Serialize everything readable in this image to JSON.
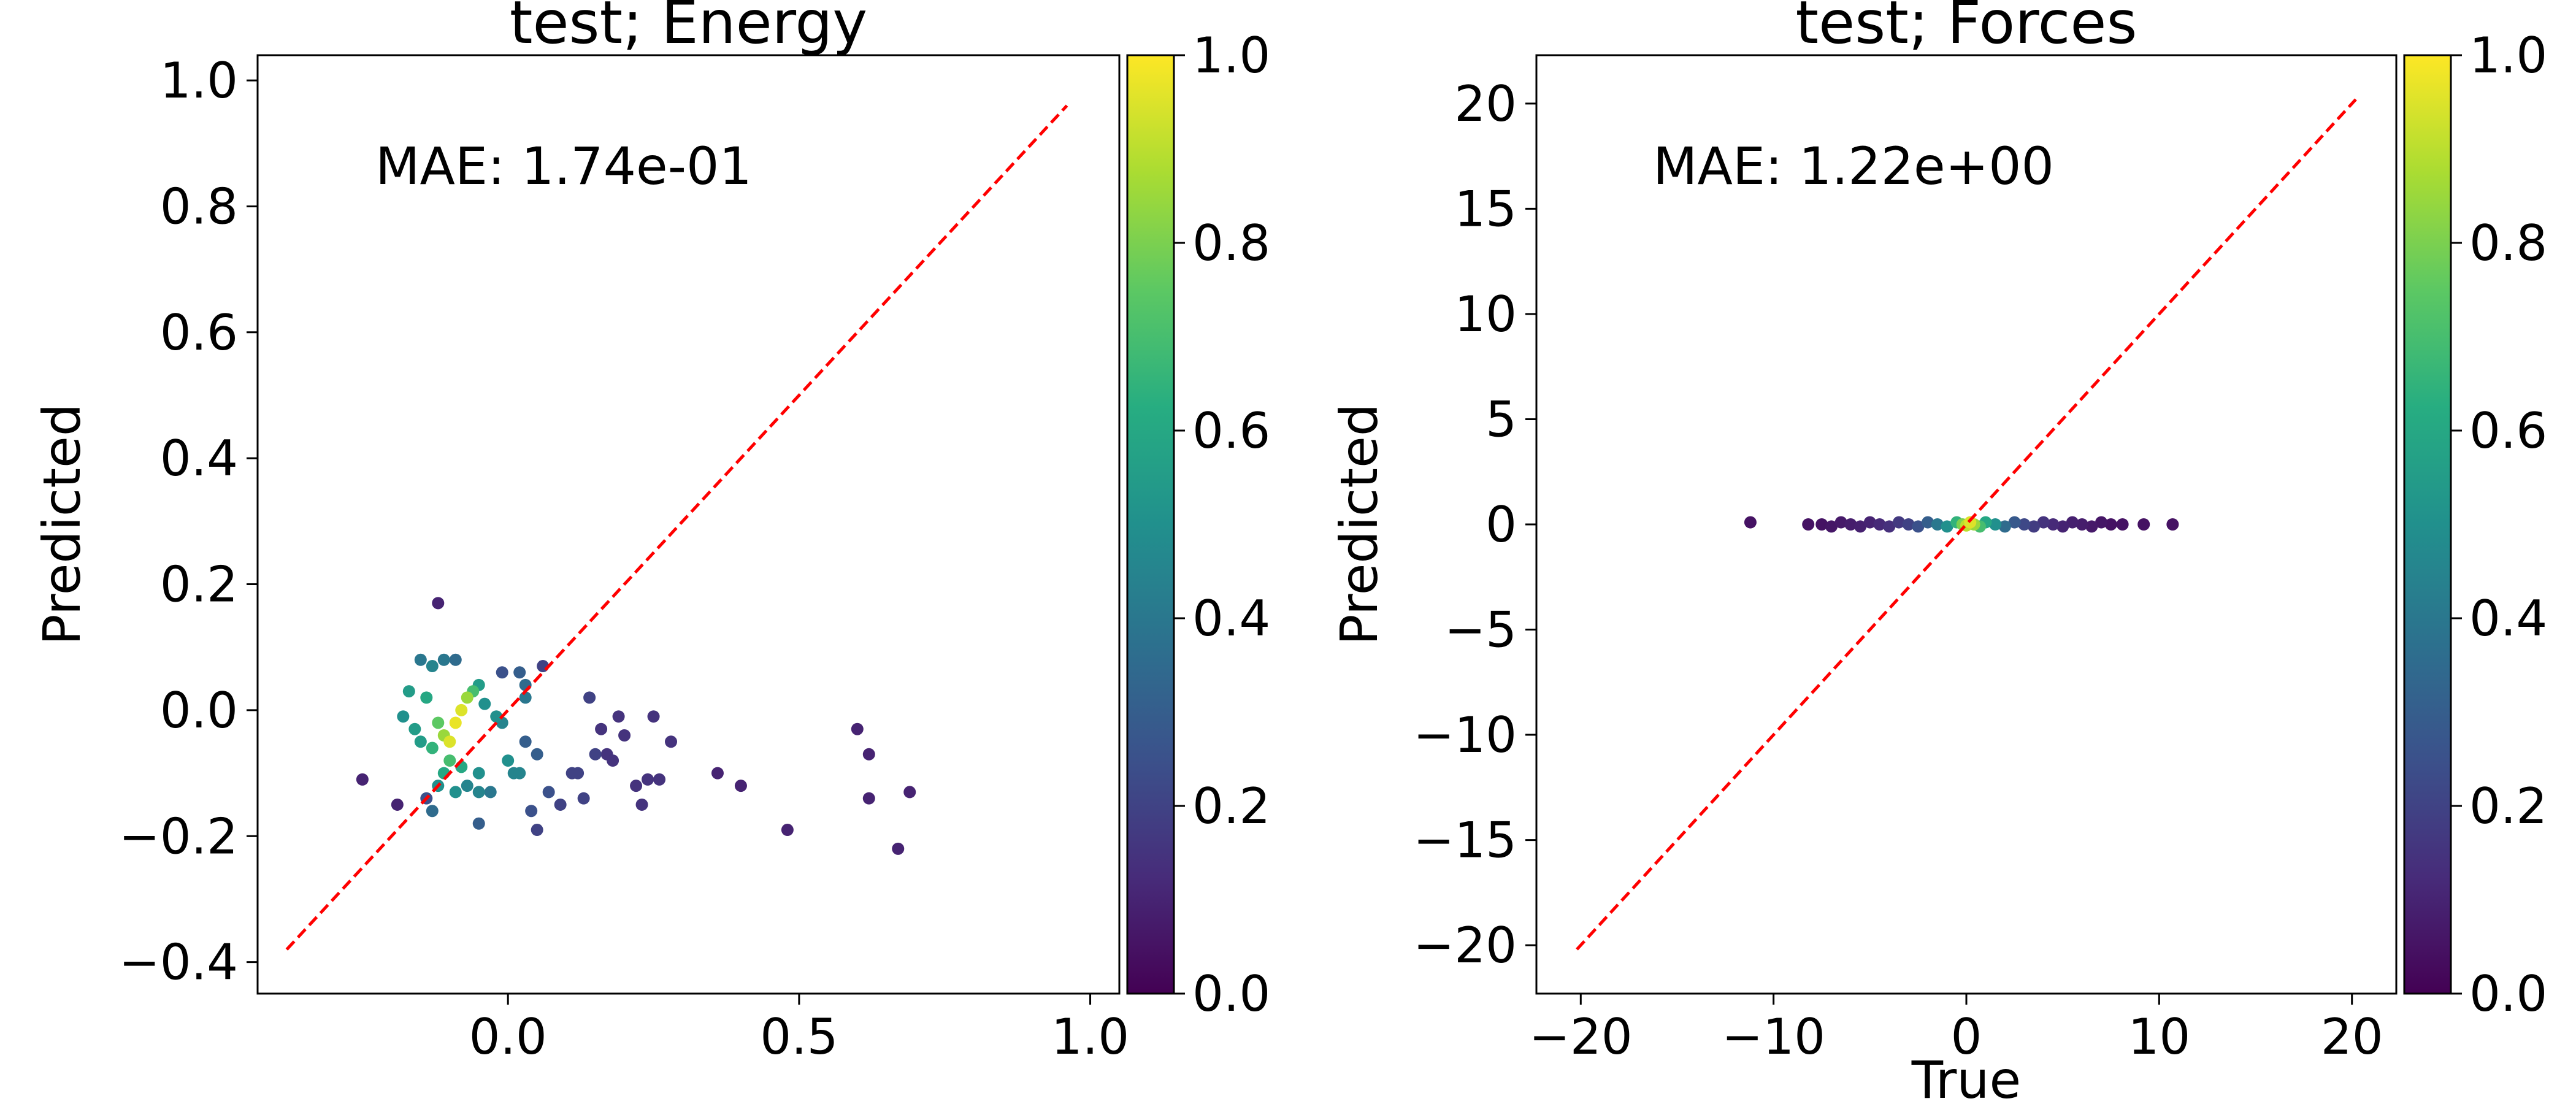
{
  "colors": {
    "identity_line": "#ff0000",
    "colormap": "viridis"
  },
  "chart_data": [
    {
      "type": "scatter",
      "title": "test; Energy",
      "xlabel": "",
      "ylabel": "Predicted",
      "xlim": [
        -0.43,
        1.05
      ],
      "ylim": [
        -0.45,
        1.04
      ],
      "xticks": [
        {
          "v": 0.0,
          "label": "0.0"
        },
        {
          "v": 0.5,
          "label": "0.5"
        },
        {
          "v": 1.0,
          "label": "1.0"
        }
      ],
      "yticks": [
        {
          "v": -0.4,
          "label": "−0.4"
        },
        {
          "v": -0.2,
          "label": "−0.2"
        },
        {
          "v": 0.0,
          "label": "0.0"
        },
        {
          "v": 0.2,
          "label": "0.2"
        },
        {
          "v": 0.4,
          "label": "0.4"
        },
        {
          "v": 0.6,
          "label": "0.6"
        },
        {
          "v": 0.8,
          "label": "0.8"
        },
        {
          "v": 1.0,
          "label": "1.0"
        }
      ],
      "annotation": "MAE: 1.74e-01",
      "identity_line": [
        [
          -0.38,
          -0.38
        ],
        [
          0.96,
          0.96
        ]
      ],
      "colorbar": {
        "range": [
          0,
          1
        ],
        "ticks": [
          {
            "v": 0.0,
            "label": "0.0"
          },
          {
            "v": 0.2,
            "label": "0.2"
          },
          {
            "v": 0.4,
            "label": "0.4"
          },
          {
            "v": 0.6,
            "label": "0.6"
          },
          {
            "v": 0.8,
            "label": "0.8"
          },
          {
            "v": 1.0,
            "label": "1.0"
          }
        ]
      },
      "grid": false,
      "points": [
        [
          -0.12,
          0.17,
          0.1
        ],
        [
          -0.25,
          -0.11,
          0.1
        ],
        [
          -0.19,
          -0.15,
          0.1
        ],
        [
          -0.14,
          -0.14,
          0.25
        ],
        [
          -0.13,
          -0.16,
          0.35
        ],
        [
          -0.15,
          0.08,
          0.4
        ],
        [
          -0.13,
          0.07,
          0.45
        ],
        [
          -0.11,
          0.08,
          0.4
        ],
        [
          -0.09,
          0.08,
          0.35
        ],
        [
          -0.18,
          -0.01,
          0.5
        ],
        [
          -0.16,
          -0.03,
          0.55
        ],
        [
          -0.17,
          0.03,
          0.55
        ],
        [
          -0.14,
          0.02,
          0.6
        ],
        [
          -0.12,
          -0.02,
          0.75
        ],
        [
          -0.11,
          -0.04,
          0.85
        ],
        [
          -0.1,
          -0.05,
          0.95
        ],
        [
          -0.09,
          -0.02,
          0.97
        ],
        [
          -0.08,
          0.0,
          0.95
        ],
        [
          -0.07,
          0.02,
          0.85
        ],
        [
          -0.06,
          0.03,
          0.7
        ],
        [
          -0.05,
          0.04,
          0.55
        ],
        [
          -0.04,
          0.01,
          0.5
        ],
        [
          -0.1,
          -0.08,
          0.7
        ],
        [
          -0.08,
          -0.09,
          0.6
        ],
        [
          -0.11,
          -0.1,
          0.6
        ],
        [
          -0.13,
          -0.06,
          0.65
        ],
        [
          -0.15,
          -0.05,
          0.55
        ],
        [
          -0.12,
          -0.12,
          0.5
        ],
        [
          -0.09,
          -0.13,
          0.5
        ],
        [
          -0.07,
          -0.12,
          0.45
        ],
        [
          -0.05,
          -0.1,
          0.5
        ],
        [
          -0.05,
          -0.13,
          0.45
        ],
        [
          -0.03,
          -0.13,
          0.4
        ],
        [
          -0.05,
          -0.18,
          0.3
        ],
        [
          -0.02,
          -0.01,
          0.5
        ],
        [
          -0.01,
          -0.02,
          0.45
        ],
        [
          0.0,
          -0.08,
          0.5
        ],
        [
          0.01,
          -0.1,
          0.45
        ],
        [
          0.02,
          -0.1,
          0.45
        ],
        [
          0.03,
          0.04,
          0.35
        ],
        [
          0.03,
          0.02,
          0.4
        ],
        [
          0.02,
          0.06,
          0.3
        ],
        [
          -0.01,
          0.06,
          0.25
        ],
        [
          0.03,
          -0.05,
          0.3
        ],
        [
          0.05,
          -0.07,
          0.3
        ],
        [
          0.06,
          0.07,
          0.2
        ],
        [
          0.04,
          -0.16,
          0.25
        ],
        [
          0.05,
          -0.19,
          0.2
        ],
        [
          0.07,
          -0.13,
          0.25
        ],
        [
          0.09,
          -0.15,
          0.2
        ],
        [
          0.11,
          -0.1,
          0.2
        ],
        [
          0.12,
          -0.1,
          0.2
        ],
        [
          0.13,
          -0.14,
          0.2
        ],
        [
          0.14,
          0.02,
          0.2
        ],
        [
          0.15,
          -0.07,
          0.2
        ],
        [
          0.16,
          -0.03,
          0.15
        ],
        [
          0.17,
          -0.07,
          0.15
        ],
        [
          0.18,
          -0.08,
          0.15
        ],
        [
          0.19,
          -0.01,
          0.15
        ],
        [
          0.2,
          -0.04,
          0.15
        ],
        [
          0.22,
          -0.12,
          0.15
        ],
        [
          0.23,
          -0.15,
          0.15
        ],
        [
          0.24,
          -0.11,
          0.15
        ],
        [
          0.25,
          -0.01,
          0.15
        ],
        [
          0.26,
          -0.11,
          0.15
        ],
        [
          0.28,
          -0.05,
          0.15
        ],
        [
          0.36,
          -0.1,
          0.1
        ],
        [
          0.4,
          -0.12,
          0.1
        ],
        [
          0.48,
          -0.19,
          0.1
        ],
        [
          0.6,
          -0.03,
          0.1
        ],
        [
          0.62,
          -0.07,
          0.1
        ],
        [
          0.62,
          -0.14,
          0.1
        ],
        [
          0.67,
          -0.22,
          0.1
        ],
        [
          0.69,
          -0.13,
          0.1
        ]
      ]
    },
    {
      "type": "scatter",
      "title": "test; Forces",
      "xlabel": "True",
      "ylabel": "Predicted",
      "xlim": [
        -22.3,
        22.3
      ],
      "ylim": [
        -22.3,
        22.3
      ],
      "xticks": [
        {
          "v": -20,
          "label": "−20"
        },
        {
          "v": -10,
          "label": "−10"
        },
        {
          "v": 0,
          "label": "0"
        },
        {
          "v": 10,
          "label": "10"
        },
        {
          "v": 20,
          "label": "20"
        }
      ],
      "yticks": [
        {
          "v": -20,
          "label": "−20"
        },
        {
          "v": -15,
          "label": "−15"
        },
        {
          "v": -10,
          "label": "−10"
        },
        {
          "v": -5,
          "label": "−5"
        },
        {
          "v": 0,
          "label": "0"
        },
        {
          "v": 5,
          "label": "5"
        },
        {
          "v": 10,
          "label": "10"
        },
        {
          "v": 15,
          "label": "15"
        },
        {
          "v": 20,
          "label": "20"
        }
      ],
      "annotation": "MAE: 1.22e+00",
      "identity_line": [
        [
          -20.2,
          -20.2
        ],
        [
          20.2,
          20.2
        ]
      ],
      "colorbar": {
        "range": [
          0,
          1
        ],
        "ticks": [
          {
            "v": 0.0,
            "label": "0.0"
          },
          {
            "v": 0.2,
            "label": "0.2"
          },
          {
            "v": 0.4,
            "label": "0.4"
          },
          {
            "v": 0.6,
            "label": "0.6"
          },
          {
            "v": 0.8,
            "label": "0.8"
          },
          {
            "v": 1.0,
            "label": "1.0"
          }
        ]
      },
      "grid": false,
      "points": [
        [
          -11.2,
          0.1,
          0.05
        ],
        [
          -8.2,
          0.0,
          0.05
        ],
        [
          -7.5,
          0.0,
          0.05
        ],
        [
          -7.0,
          -0.1,
          0.06
        ],
        [
          -6.5,
          0.1,
          0.07
        ],
        [
          -6.0,
          0.0,
          0.08
        ],
        [
          -5.5,
          -0.1,
          0.09
        ],
        [
          -5.0,
          0.1,
          0.1
        ],
        [
          -4.5,
          0.0,
          0.12
        ],
        [
          -4.0,
          -0.1,
          0.14
        ],
        [
          -3.5,
          0.1,
          0.17
        ],
        [
          -3.0,
          0.0,
          0.2
        ],
        [
          -2.5,
          -0.1,
          0.25
        ],
        [
          -2.0,
          0.1,
          0.3
        ],
        [
          -1.5,
          0.0,
          0.4
        ],
        [
          -1.0,
          -0.1,
          0.5
        ],
        [
          -0.5,
          0.1,
          0.65
        ],
        [
          -0.2,
          0.0,
          0.8
        ],
        [
          0.0,
          -0.05,
          0.9
        ],
        [
          0.2,
          0.1,
          0.95
        ],
        [
          0.4,
          0.0,
          0.85
        ],
        [
          0.7,
          -0.1,
          0.7
        ],
        [
          1.0,
          0.1,
          0.6
        ],
        [
          1.5,
          0.0,
          0.5
        ],
        [
          2.0,
          -0.1,
          0.35
        ],
        [
          2.5,
          0.1,
          0.28
        ],
        [
          3.0,
          0.0,
          0.22
        ],
        [
          3.5,
          -0.1,
          0.18
        ],
        [
          4.0,
          0.1,
          0.15
        ],
        [
          4.5,
          0.0,
          0.12
        ],
        [
          5.0,
          -0.1,
          0.1
        ],
        [
          5.5,
          0.1,
          0.09
        ],
        [
          6.0,
          0.0,
          0.08
        ],
        [
          6.5,
          -0.1,
          0.07
        ],
        [
          7.0,
          0.1,
          0.06
        ],
        [
          7.5,
          0.0,
          0.05
        ],
        [
          8.1,
          0.0,
          0.05
        ],
        [
          9.2,
          0.0,
          0.05
        ],
        [
          10.7,
          0.0,
          0.05
        ]
      ]
    }
  ]
}
